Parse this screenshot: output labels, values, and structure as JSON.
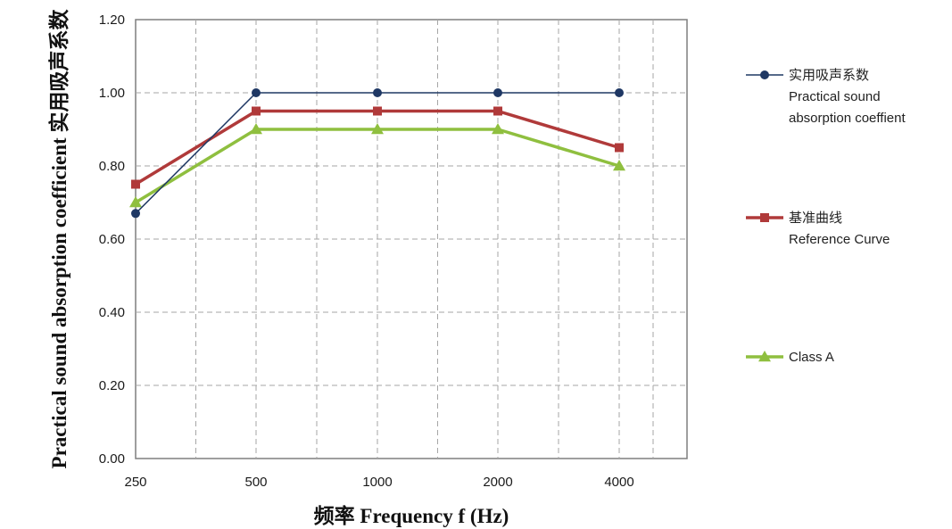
{
  "chart_data": {
    "type": "line",
    "categories": [
      "250",
      "500",
      "1000",
      "2000",
      "4000"
    ],
    "xlabel": "频率 Frequency  f (Hz)",
    "ylabel": "Practical sound absorption coefficient 实用吸声系数",
    "ylim": [
      0,
      1.2
    ],
    "ytick_step": 0.2,
    "ytick_labels": [
      "0.00",
      "0.20",
      "0.40",
      "0.60",
      "0.80",
      "1.00",
      "1.20"
    ],
    "grid": true,
    "legend_position": "right",
    "series": [
      {
        "name": "实用吸声系数 Practical sound absorption coeffient",
        "legend_lines": [
          "实用吸声系数",
          "Practical sound",
          "absorption coeffient"
        ],
        "values": [
          0.67,
          1.0,
          1.0,
          1.0,
          1.0
        ],
        "color": "#1f3864",
        "marker": "circle"
      },
      {
        "name": "基准曲线 Reference Curve",
        "legend_lines": [
          "基准曲线",
          "Reference Curve"
        ],
        "values": [
          0.75,
          0.95,
          0.95,
          0.95,
          0.85
        ],
        "color": "#b03a3a",
        "marker": "square"
      },
      {
        "name": "Class A",
        "legend_lines": [
          "Class A"
        ],
        "values": [
          0.7,
          0.9,
          0.9,
          0.9,
          0.8
        ],
        "color": "#8fbf3f",
        "marker": "triangle"
      }
    ]
  }
}
